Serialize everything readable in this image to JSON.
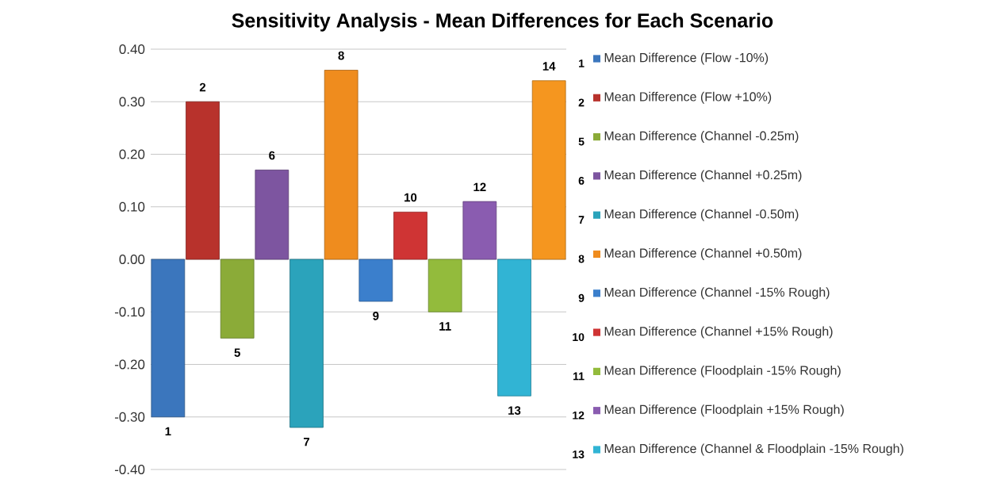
{
  "chart_data": {
    "type": "bar",
    "title": "Sensitivity Analysis - Mean Differences for Each Scenario",
    "categories": [
      null,
      null,
      null,
      null,
      null,
      null,
      null,
      null,
      null,
      null,
      null,
      null
    ],
    "stacked": true,
    "series": [
      {
        "name": "Mean Difference (Flow -10%)",
        "color": "#3b76bd",
        "values": [
          -0.3,
          null,
          null,
          null,
          null,
          null,
          null,
          null,
          null,
          null,
          null,
          null
        ]
      },
      {
        "name": "Mean Difference (Flow +10%)",
        "color": "#b8322c",
        "values": [
          null,
          0.3,
          null,
          null,
          null,
          null,
          null,
          null,
          null,
          null,
          null,
          null
        ]
      },
      {
        "name": "Mean Difference (Channel -0.25m)",
        "color": "#8bab38",
        "values": [
          null,
          null,
          -0.15,
          null,
          null,
          null,
          null,
          null,
          null,
          null,
          null,
          null
        ]
      },
      {
        "name": "Mean Difference (Channel +0.25m)",
        "color": "#7d55a0",
        "values": [
          null,
          null,
          null,
          0.17,
          null,
          null,
          null,
          null,
          null,
          null,
          null,
          null
        ]
      },
      {
        "name": "Mean Difference (Channel -0.50m)",
        "color": "#2ba3bb",
        "values": [
          null,
          null,
          null,
          null,
          -0.32,
          null,
          null,
          null,
          null,
          null,
          null,
          null
        ]
      },
      {
        "name": "Mean Difference (Channel +0.50m)",
        "color": "#ef8c1e",
        "values": [
          null,
          null,
          null,
          null,
          null,
          0.36,
          null,
          null,
          null,
          null,
          null,
          null
        ]
      },
      {
        "name": "Mean Difference (Channel -15% Rough)",
        "color": "#3b7fcc",
        "values": [
          null,
          null,
          null,
          null,
          null,
          null,
          -0.08,
          null,
          null,
          null,
          null,
          null
        ]
      },
      {
        "name": "Mean Difference (Channel +15% Rough)",
        "color": "#cf3434",
        "values": [
          null,
          null,
          null,
          null,
          null,
          null,
          null,
          0.09,
          null,
          null,
          null,
          null
        ]
      },
      {
        "name": "Mean Difference (Floodplain -15% Rough)",
        "color": "#93bb3c",
        "values": [
          null,
          null,
          null,
          null,
          null,
          null,
          null,
          null,
          -0.1,
          null,
          null,
          null
        ]
      },
      {
        "name": "Mean Difference (Floodplain +15% Rough)",
        "color": "#8a5cb0",
        "values": [
          null,
          null,
          null,
          null,
          null,
          null,
          null,
          null,
          null,
          0.11,
          null,
          null
        ]
      },
      {
        "name": "Mean Difference (Channel & Floodplain -15% Rough)",
        "color": "#31b4d4",
        "values": [
          null,
          null,
          null,
          null,
          null,
          null,
          null,
          null,
          null,
          null,
          -0.26,
          null
        ]
      },
      {
        "color": "#f5961f",
        "values": [
          null,
          null,
          null,
          null,
          null,
          null,
          null,
          null,
          null,
          null,
          null,
          0.34
        ]
      }
    ],
    "ylim": [
      -0.4,
      0.4
    ],
    "yticks": [
      {
        "value": -0.4,
        "label": "-0.40"
      },
      {
        "value": -0.3,
        "label": "-0.30"
      },
      {
        "value": -0.2,
        "label": "-0.20"
      },
      {
        "value": -0.1,
        "label": "-0.10"
      },
      {
        "value": 0,
        "label": "0.00"
      },
      {
        "value": 0.1,
        "label": "0.10"
      },
      {
        "value": 0.2,
        "label": "0.20"
      },
      {
        "value": 0.3,
        "label": "0.30"
      },
      {
        "value": 0.4,
        "label": "0.40"
      }
    ],
    "annotations": [
      "1",
      "2",
      "5",
      "6",
      "7",
      "8",
      "9",
      "10",
      "11",
      "12",
      "13",
      "14"
    ],
    "grid": "y",
    "legend": "right",
    "tick_labels": "y"
  }
}
